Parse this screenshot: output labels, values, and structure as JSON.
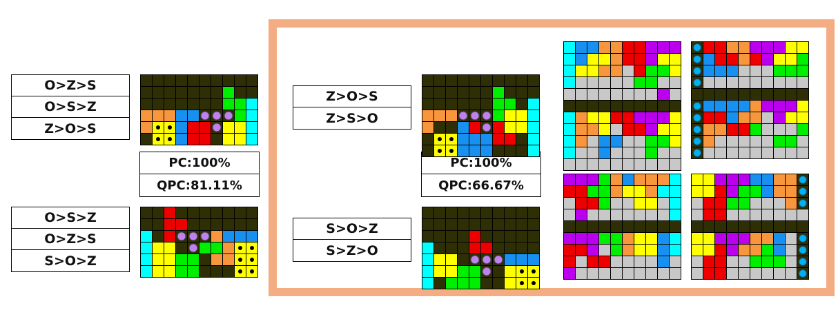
{
  "palette": {
    "K": "#2f2f06",
    "C": "#00ffff",
    "O": "#f7963c",
    "B": "#1890f0",
    "R": "#ee0000",
    "Y": "#ffff00",
    "G": "#00ee00",
    "P": "#bb00ee",
    "E": "#c8c8c8",
    "D": "#c080f0",
    "L": "#00b0f0"
  },
  "sequences": {
    "left_top": [
      "O>Z>S",
      "O>S>Z",
      "Z>O>S"
    ],
    "left_bottom": [
      "O>S>Z",
      "O>Z>S",
      "S>O>Z"
    ],
    "right_top": [
      "Z>O>S",
      "Z>S>O"
    ],
    "right_bottom": [
      "S>O>Z",
      "S>Z>O"
    ]
  },
  "stats": {
    "left": {
      "pc": "PC:100%",
      "qpc": "QPC:81.11%"
    },
    "right": {
      "pc": "PC:100%",
      "qpc": "QPC:66.67%"
    }
  },
  "boards": [
    {
      "id": "board-left-top",
      "rows": [
        "KKKKKKKKKK",
        "KKKKKKKGKK",
        "KKKKKKKGGC",
        "OOOBBdddGC",
        "OffBRRdYYC",
        "KffBRRKYYC"
      ]
    },
    {
      "id": "board-left-bottom",
      "rows": [
        "KKRKKKKKKK",
        "KKRRKKKKKK",
        "CKRdddOBBB",
        "CYYKdGGOff",
        "CYYGGKOOff",
        "CYYGGKKKff"
      ]
    },
    {
      "id": "board-right-top",
      "rows": [
        "KKKKKKKKKK",
        "KKKKKKGKKK",
        "KKKKKKGGKC",
        "OOOdddGYYC",
        "OKKBRdRYYC",
        "KffBBBRRKC",
        "KffBBBKKKC"
      ]
    },
    {
      "id": "board-right-bottom",
      "rows": [
        "KKKKKKKKKK",
        "KKKKKKKKKK",
        "KKKKRKKKKK",
        "CKKKRRKKKK",
        "CYYKdddBBB",
        "CYYGGdKYff",
        "CKGGGKKYff"
      ]
    },
    {
      "id": "solution-grid-1",
      "rows": [
        "CBBOORRPPP",
        "CBYYORRPYY",
        "CYYOOERGGY",
        "CEEEEEGGEE",
        "EEEEEEEEPE",
        "KKKKKKKKKK",
        "COYYRRPPPY",
        "COOYERRPYY",
        "COEBBEEGGY",
        "CEEBEEEGEE",
        "EEEEEEEEEE"
      ]
    },
    {
      "id": "solution-grid-2",
      "rows": [
        "LRROOPPPYY",
        "LBRRORPYYG",
        "LBBBEEEGGG",
        "LEEEEEEEEE",
        "KKKKKKKKKK",
        "LBBBBOPPPY",
        "LRRBOOEPYY",
        "LOORRGEEEG",
        "LOEEEEEGGE",
        "LEEEEEEEEE"
      ]
    },
    {
      "id": "solution-grid-3",
      "rows": [
        "PPPGOBOOOC",
        "RRGGOYYOCC",
        "ERRGEEYYEC",
        "EPEEEEEEEC",
        "KKKKKKKKKK",
        "PPPGGOYYBC",
        "RRPEGOYYBC",
        "RERREEEEBE",
        "PEEEEEEEEE"
      ]
    },
    {
      "id": "solution-grid-4",
      "rows": [
        "YYPPPBBOOL",
        "YYRPGGBOOL",
        "ERRGGEEEOL",
        "ERREEEEEEE",
        "KKKKKKKKKK",
        "YYPPPOOBEL",
        "YYRPOOGBEL",
        "ERREEGGGEL",
        "ERREEEEEEL"
      ]
    }
  ]
}
